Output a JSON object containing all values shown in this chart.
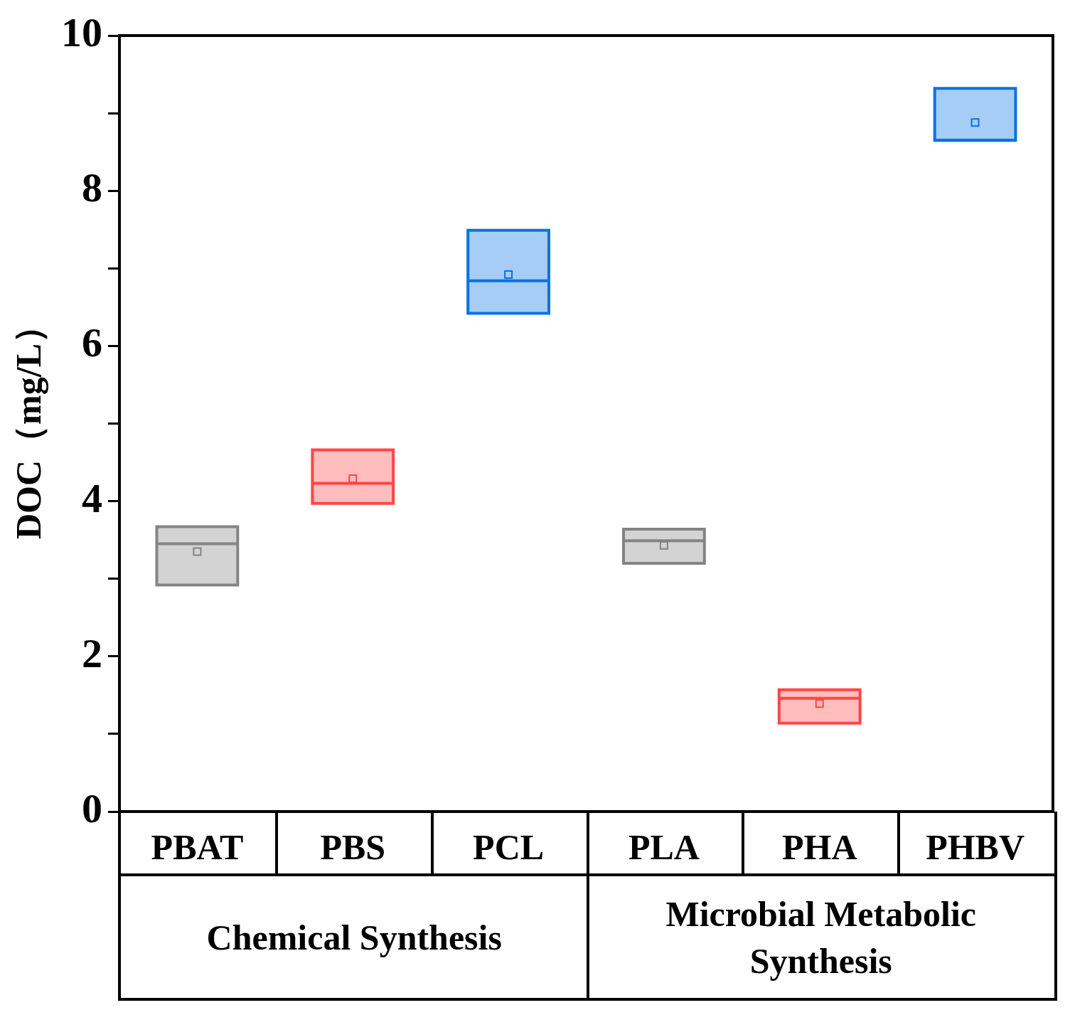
{
  "chart_data": {
    "type": "box",
    "ylabel": "DOC（mg/L）",
    "categories": [
      "PBAT",
      "PBS",
      "PCL",
      "PLA",
      "PHA",
      "PHBV"
    ],
    "boxes": [
      {
        "low": 2.92,
        "q1": 2.92,
        "median": 3.45,
        "q3": 3.67,
        "high": 3.67,
        "mean": 3.35
      },
      {
        "low": 3.97,
        "q1": 3.97,
        "median": 4.23,
        "q3": 4.66,
        "high": 4.66,
        "mean": 4.29
      },
      {
        "low": 6.42,
        "q1": 6.42,
        "median": 6.84,
        "q3": 7.49,
        "high": 7.49,
        "mean": 6.92
      },
      {
        "low": 3.2,
        "q1": 3.2,
        "median": 3.49,
        "q3": 3.64,
        "high": 3.64,
        "mean": 3.43
      },
      {
        "low": 1.14,
        "q1": 1.14,
        "median": 1.46,
        "q3": 1.57,
        "high": 1.57,
        "mean": 1.39
      },
      {
        "low": 8.65,
        "q1": 8.65,
        "median": 8.65,
        "q3": 9.32,
        "high": 9.32,
        "mean": 8.88
      }
    ],
    "colors": [
      "#d3d3d3",
      "#ffbdbd",
      "#a6cdf5",
      "#d3d3d3",
      "#ffbdbd",
      "#a6cdf5"
    ],
    "ylim": [
      0,
      10
    ],
    "yticks": [
      0,
      {
        "value": 1,
        "label": null
      },
      2,
      {
        "value": 3,
        "label": null
      },
      4,
      {
        "value": 5,
        "label": null
      },
      6,
      {
        "value": 7,
        "label": null
      },
      8,
      {
        "value": 9,
        "label": null
      },
      10
    ],
    "marker": "square",
    "grid": false,
    "legend": false,
    "annotations": [
      "Chemical Synthesis",
      "Microbial Metabolic Synthesis"
    ]
  }
}
